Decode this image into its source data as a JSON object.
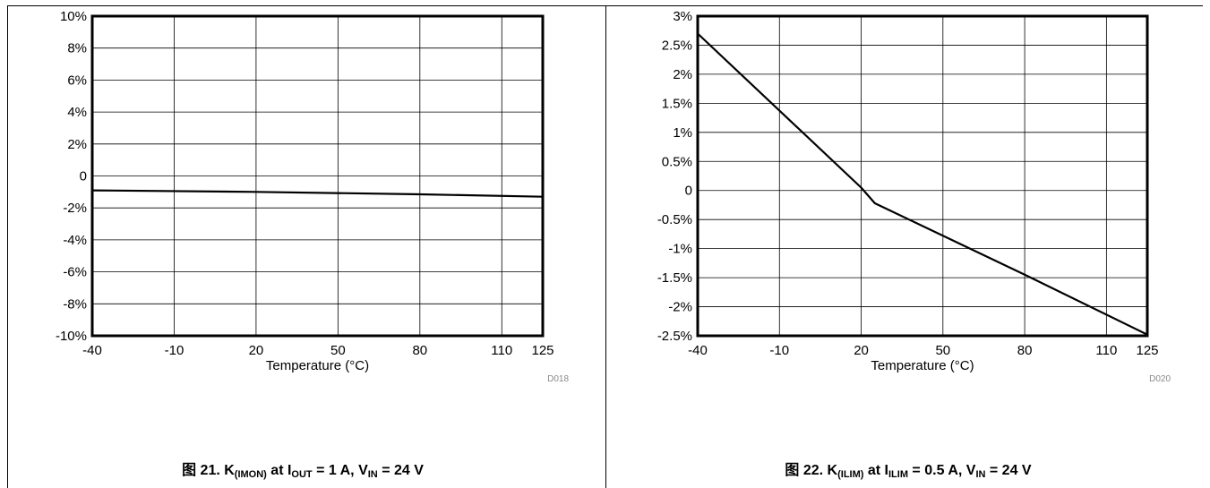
{
  "figures": [
    {
      "id_label": "D018",
      "caption": {
        "prefix": "图 21. K",
        "k_sub": "(IMON)",
        "mid1": " at I",
        "i_sub": "OUT",
        "mid2": " = 1 A, V",
        "v_sub": "IN",
        "suffix": " = 24 V"
      }
    },
    {
      "id_label": "D020",
      "caption": {
        "prefix": "图 22. K",
        "k_sub": "(ILIM)",
        "mid1": " at I",
        "i_sub": "ILIM",
        "mid2": " = 0.5 A, V",
        "v_sub": "IN",
        "suffix": " = 24 V"
      }
    }
  ],
  "chart_data": [
    {
      "type": "line",
      "xlabel": "Temperature (°C)",
      "ylabel": "",
      "xlim": [
        -40,
        125
      ],
      "ylim": [
        -10,
        10
      ],
      "x_ticks": [
        -40,
        -10,
        20,
        50,
        80,
        110,
        125
      ],
      "x_tick_labels": [
        "-40",
        "-10",
        "20",
        "50",
        "80",
        "110",
        "125"
      ],
      "y_ticks": [
        10,
        8,
        6,
        4,
        2,
        0,
        -2,
        -4,
        -6,
        -8,
        -10
      ],
      "y_tick_labels": [
        "10%",
        "8%",
        "6%",
        "4%",
        "2%",
        "0",
        "-2%",
        "-4%",
        "-6%",
        "-8%",
        "-10%"
      ],
      "grid": true,
      "series": [
        {
          "x": [
            -40,
            20,
            80,
            125
          ],
          "y": [
            -0.9,
            -1.0,
            -1.15,
            -1.3
          ]
        }
      ]
    },
    {
      "type": "line",
      "xlabel": "Temperature (°C)",
      "ylabel": "",
      "xlim": [
        -40,
        125
      ],
      "ylim": [
        -2.5,
        3
      ],
      "x_ticks": [
        -40,
        -10,
        20,
        50,
        80,
        110,
        125
      ],
      "x_tick_labels": [
        "-40",
        "-10",
        "20",
        "50",
        "80",
        "110",
        "125"
      ],
      "y_ticks": [
        3,
        2.5,
        2,
        1.5,
        1,
        0.5,
        0,
        -0.5,
        -1,
        -1.5,
        -2,
        -2.5
      ],
      "y_tick_labels": [
        "3%",
        "2.5%",
        "2%",
        "1.5%",
        "1%",
        "0.5%",
        "0",
        "-0.5%",
        "-1%",
        "-1.5%",
        "-2%",
        "-2.5%"
      ],
      "grid": true,
      "series": [
        {
          "x": [
            -40,
            20,
            25,
            80,
            125
          ],
          "y": [
            2.7,
            0.05,
            -0.22,
            -1.45,
            -2.48
          ]
        }
      ]
    }
  ]
}
